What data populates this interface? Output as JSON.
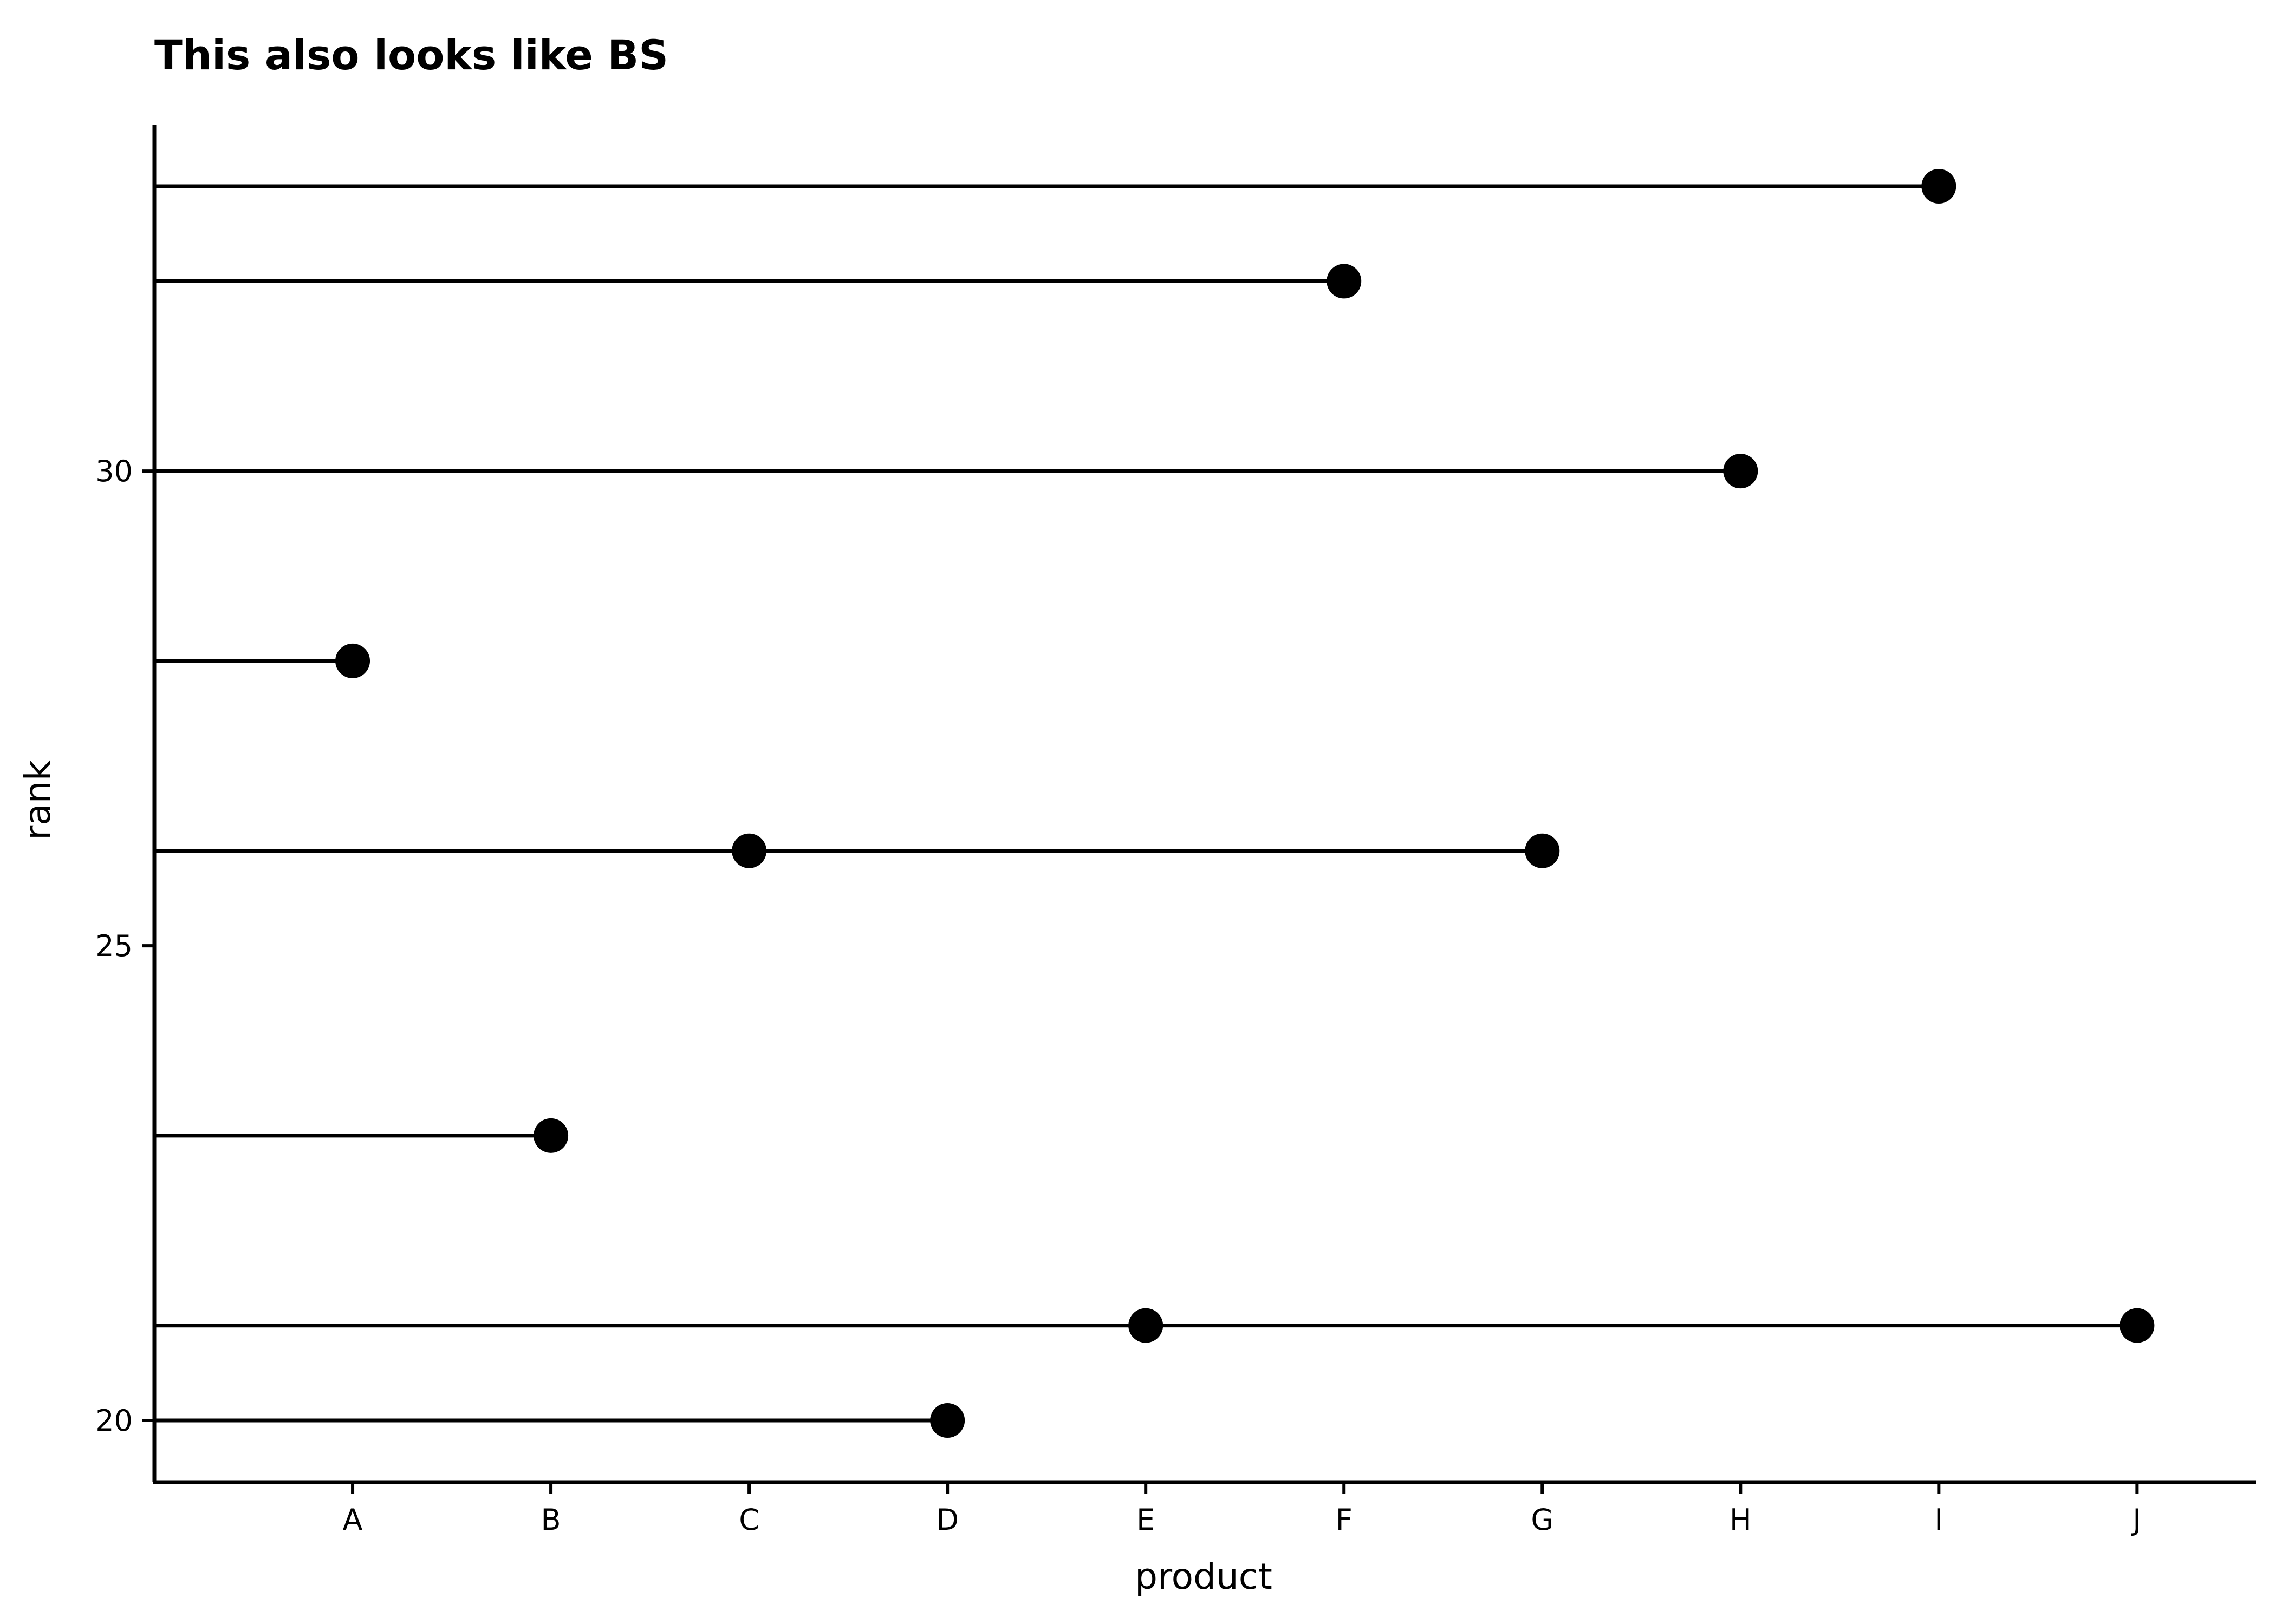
{
  "chart_data": {
    "type": "lollipop",
    "title": "This also looks like BS",
    "xlabel": "product",
    "ylabel": "rank",
    "categories": [
      "A",
      "B",
      "C",
      "D",
      "E",
      "F",
      "G",
      "H",
      "I",
      "J"
    ],
    "points": [
      {
        "product": "A",
        "rank": 28
      },
      {
        "product": "B",
        "rank": 23
      },
      {
        "product": "C",
        "rank": 26
      },
      {
        "product": "D",
        "rank": 20
      },
      {
        "product": "E",
        "rank": 21
      },
      {
        "product": "F",
        "rank": 32
      },
      {
        "product": "G",
        "rank": 26
      },
      {
        "product": "H",
        "rank": 30
      },
      {
        "product": "I",
        "rank": 33
      },
      {
        "product": "J",
        "rank": 21
      }
    ],
    "y_ticks": [
      20,
      25,
      30
    ],
    "ylim": [
      19.35,
      33.65
    ],
    "grid": false,
    "colors": {
      "line": "#000000",
      "point": "#000000"
    }
  }
}
